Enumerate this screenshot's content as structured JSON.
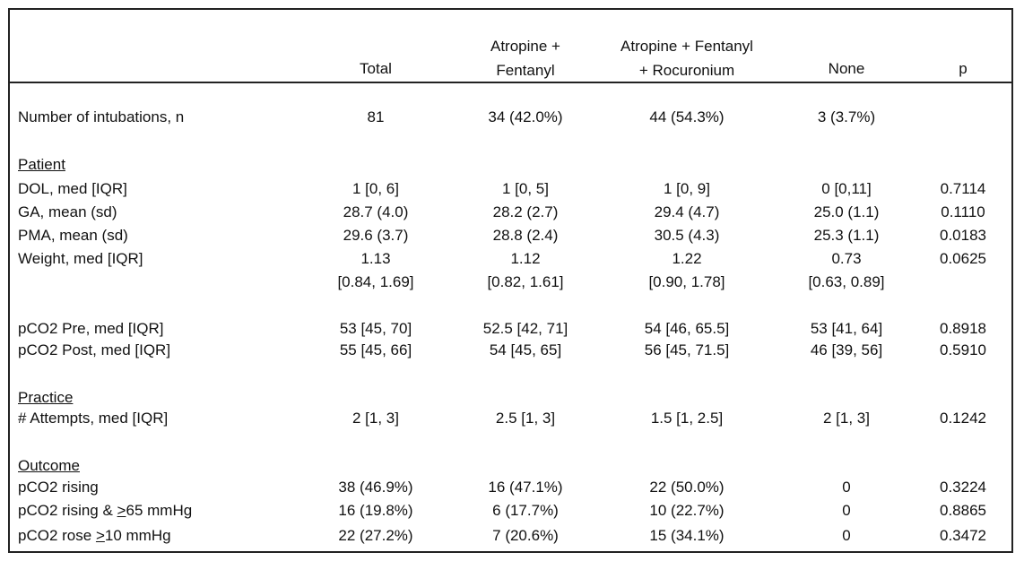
{
  "table": {
    "headers": {
      "total": "Total",
      "af_line1": "Atropine +",
      "af_line2": "Fentanyl",
      "afr_line1": "Atropine + Fentanyl",
      "afr_line2": "+ Rocuronium",
      "none": "None",
      "p": "p"
    },
    "intubations": {
      "label": "Number of intubations, n",
      "total": "81",
      "af": "34 (42.0%)",
      "afr": "44 (54.3%)",
      "none": "3 (3.7%)",
      "p": ""
    },
    "sections": {
      "patient": "Patient",
      "practice": "Practice",
      "outcome": "Outcome"
    },
    "rows": {
      "dol": {
        "label": "DOL, med [IQR]",
        "total": "1 [0, 6]",
        "af": "1 [0, 5]",
        "afr": "1 [0, 9]",
        "none": "0 [0,11]",
        "p": "0.7114"
      },
      "ga": {
        "label": "GA, mean (sd)",
        "total": "28.7 (4.0)",
        "af": "28.2 (2.7)",
        "afr": "29.4 (4.7)",
        "none": "25.0 (1.1)",
        "p": "0.1110"
      },
      "pma": {
        "label": "PMA, mean (sd)",
        "total": "29.6 (3.7)",
        "af": "28.8 (2.4)",
        "afr": "30.5 (4.3)",
        "none": "25.3 (1.1)",
        "p": "0.0183"
      },
      "weight": {
        "label": "Weight, med [IQR]",
        "total": "1.13",
        "af": "1.12",
        "afr": "1.22",
        "none": "0.73",
        "p": "0.0625"
      },
      "weight_iqr": {
        "total": "[0.84, 1.69]",
        "af": "[0.82, 1.61]",
        "afr": "[0.90, 1.78]",
        "none": "[0.63, 0.89]"
      },
      "pco2_pre": {
        "label": "pCO2 Pre, med [IQR]",
        "total": "53 [45, 70]",
        "af": "52.5 [42, 71]",
        "afr": "54 [46, 65.5]",
        "none": "53 [41, 64]",
        "p": "0.8918"
      },
      "pco2_post": {
        "label": "pCO2 Post, med [IQR]",
        "total": "55 [45, 66]",
        "af": "54 [45, 65]",
        "afr": "56 [45, 71.5]",
        "none": "46 [39, 56]",
        "p": "0.5910"
      },
      "attempts": {
        "label": "# Attempts, med [IQR]",
        "total": "2 [1, 3]",
        "af": "2.5 [1, 3]",
        "afr": "1.5 [1, 2.5]",
        "none": "2 [1, 3]",
        "p": "0.1242"
      },
      "rising": {
        "label": "pCO2 rising",
        "total": "38 (46.9%)",
        "af": "16 (47.1%)",
        "afr": "22 (50.0%)",
        "none": "0",
        "p": "0.3224"
      },
      "rising65": {
        "label_pre": "pCO2 rising & ",
        "label_ul": ">",
        "label_post": "65 mmHg",
        "total": "16 (19.8%)",
        "af": "6 (17.7%)",
        "afr": "10 (22.7%)",
        "none": "0",
        "p": "0.8865"
      },
      "rose10": {
        "label_pre": "pCO2 rose ",
        "label_ul": ">",
        "label_post": "10 mmHg",
        "total": "22 (27.2%)",
        "af": "7 (20.6%)",
        "afr": "15 (34.1%)",
        "none": "0",
        "p": "0.3472"
      }
    }
  }
}
